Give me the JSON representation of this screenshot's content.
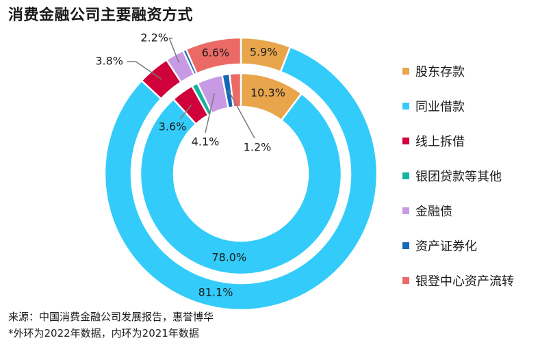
{
  "title": "消费金融公司主要融资方式",
  "chart_data": {
    "type": "donut",
    "categories": [
      "股东存款",
      "同业借款",
      "线上拆借",
      "银团贷款等其他",
      "金融债",
      "资产证券化",
      "银登中心资产流转"
    ],
    "colors": [
      "#E8A54C",
      "#33CCFA",
      "#D0003A",
      "#16B3A0",
      "#C79AE3",
      "#1767B7",
      "#EC6A66"
    ],
    "series": [
      {
        "name": "2022",
        "ring": "outer",
        "values": [
          5.9,
          81.1,
          3.8,
          0.0,
          2.2,
          0.4,
          6.6
        ]
      },
      {
        "name": "2021",
        "ring": "inner",
        "values": [
          10.3,
          78.0,
          3.6,
          1.0,
          4.1,
          1.2,
          1.8
        ]
      }
    ],
    "labels": {
      "outer": [
        "5.9%",
        "81.1%",
        "3.8%",
        "",
        "2.2%",
        "",
        "6.6%"
      ],
      "inner": [
        "10.3%",
        "78.0%",
        "3.6%",
        "",
        "4.1%",
        "1.2%",
        ""
      ]
    }
  },
  "footer": {
    "source": "来源：中国消费金融公司发展报告，惠誉博华",
    "note": "*外环为2022年数据，内环为2021年数据"
  }
}
